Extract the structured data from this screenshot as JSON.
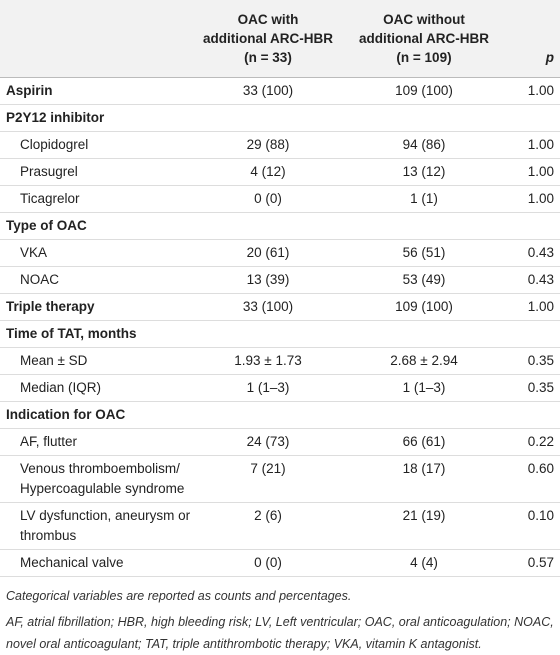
{
  "table": {
    "columns": [
      {
        "lines": [
          "OAC with",
          "additional ARC-HBR",
          "(n = 33)"
        ]
      },
      {
        "lines": [
          "OAC without",
          "additional ARC-HBR",
          "(n = 109)"
        ]
      },
      {
        "lines": [
          "p"
        ]
      }
    ],
    "sections": [
      {
        "label": "Aspirin",
        "oac_with": "33 (100)",
        "oac_without": "109 (100)",
        "p": "1.00"
      },
      {
        "heading": "P2Y12 inhibitor",
        "rows": [
          {
            "label": "Clopidogrel",
            "oac_with": "29 (88)",
            "oac_without": "94 (86)",
            "p": "1.00"
          },
          {
            "label": "Prasugrel",
            "oac_with": "4 (12)",
            "oac_without": "13 (12)",
            "p": "1.00"
          },
          {
            "label": "Ticagrelor",
            "oac_with": "0 (0)",
            "oac_without": "1 (1)",
            "p": "1.00"
          }
        ]
      },
      {
        "heading": "Type of OAC",
        "rows": [
          {
            "label": "VKA",
            "oac_with": "20 (61)",
            "oac_without": "56 (51)",
            "p": "0.43"
          },
          {
            "label": "NOAC",
            "oac_with": "13 (39)",
            "oac_without": "53 (49)",
            "p": "0.43"
          }
        ]
      },
      {
        "label": "Triple therapy",
        "oac_with": "33 (100)",
        "oac_without": "109 (100)",
        "p": "1.00"
      },
      {
        "heading": "Time of TAT, months",
        "rows": [
          {
            "label": "Mean ± SD",
            "oac_with": "1.93 ± 1.73",
            "oac_without": "2.68 ± 2.94",
            "p": "0.35"
          },
          {
            "label": "Median (IQR)",
            "oac_with": "1 (1–3)",
            "oac_without": "1 (1–3)",
            "p": "0.35"
          }
        ]
      },
      {
        "heading": "Indication for OAC",
        "rows": [
          {
            "label": "AF, flutter",
            "oac_with": "24 (73)",
            "oac_without": "66 (61)",
            "p": "0.22"
          },
          {
            "label": "Venous thromboembolism/ Hypercoagulable syndrome",
            "oac_with": "7 (21)",
            "oac_without": "18 (17)",
            "p": "0.60"
          },
          {
            "label": "LV dysfunction, aneurysm or thrombus",
            "oac_with": "2 (6)",
            "oac_without": "21 (19)",
            "p": "0.10"
          },
          {
            "label": "Mechanical valve",
            "oac_with": "0 (0)",
            "oac_without": "4 (4)",
            "p": "0.57"
          }
        ]
      }
    ],
    "footnotes": [
      "Categorical variables are reported as counts and percentages.",
      "AF, atrial fibrillation; HBR, high bleeding risk; LV, Left ventricular; OAC, oral anticoagulation; NOAC, novel oral anticoagulant; TAT, triple antithrombotic therapy; VKA, vitamin K antagonist."
    ]
  }
}
